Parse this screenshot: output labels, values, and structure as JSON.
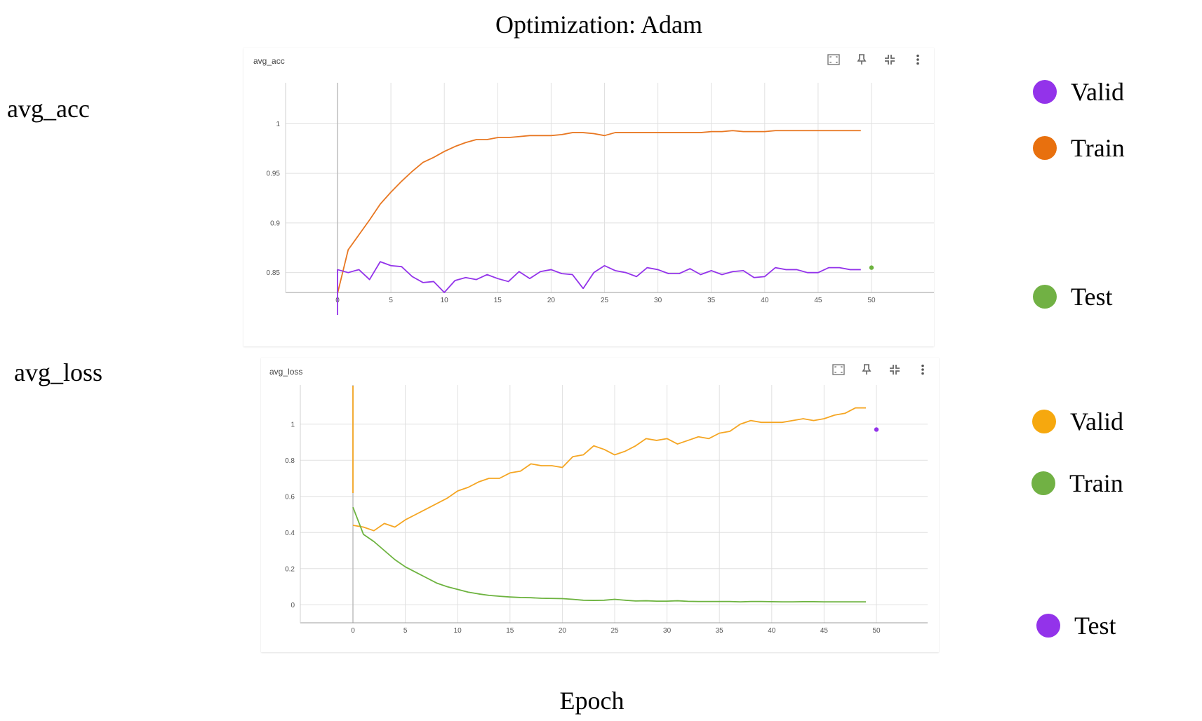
{
  "page": {
    "title": "Optimization: Adam",
    "x_axis_label": "Epoch",
    "row_labels": [
      "avg_acc",
      "avg_loss"
    ]
  },
  "chart_data": [
    {
      "type": "line",
      "card_title": "avg_acc",
      "x_ticks": [
        0,
        5,
        10,
        15,
        20,
        25,
        30,
        35,
        40,
        45,
        50
      ],
      "y_ticks": [
        0.85,
        0.9,
        0.95,
        1
      ],
      "y_tick_labels": [
        "0.85",
        "0.9",
        "0.95",
        "1"
      ],
      "xlim": [
        -5,
        55
      ],
      "ylim": [
        0.83,
        1.02
      ],
      "grid": true,
      "series": [
        {
          "name": "Train",
          "color": "#e87722",
          "x": [
            0,
            1,
            2,
            3,
            4,
            5,
            6,
            7,
            8,
            9,
            10,
            11,
            12,
            13,
            14,
            15,
            16,
            17,
            18,
            19,
            20,
            21,
            22,
            23,
            24,
            25,
            26,
            27,
            28,
            29,
            30,
            31,
            32,
            33,
            34,
            35,
            36,
            37,
            38,
            39,
            40,
            41,
            42,
            43,
            44,
            45,
            46,
            47,
            48,
            49
          ],
          "y": [
            0.829,
            0.873,
            0.888,
            0.903,
            0.919,
            0.931,
            0.942,
            0.952,
            0.961,
            0.966,
            0.972,
            0.977,
            0.981,
            0.984,
            0.984,
            0.986,
            0.986,
            0.987,
            0.988,
            0.988,
            0.988,
            0.989,
            0.991,
            0.991,
            0.99,
            0.988,
            0.991,
            0.991,
            0.991,
            0.991,
            0.991,
            0.991,
            0.991,
            0.991,
            0.991,
            0.992,
            0.992,
            0.993,
            0.992,
            0.992,
            0.992,
            0.993,
            0.993,
            0.993,
            0.993,
            0.993,
            0.993,
            0.993,
            0.993,
            0.993
          ]
        },
        {
          "name": "Valid",
          "color": "#9333ea",
          "x": [
            0,
            1,
            2,
            3,
            4,
            5,
            6,
            7,
            8,
            9,
            10,
            11,
            12,
            13,
            14,
            15,
            16,
            17,
            18,
            19,
            20,
            21,
            22,
            23,
            24,
            25,
            26,
            27,
            28,
            29,
            30,
            31,
            32,
            33,
            34,
            35,
            36,
            37,
            38,
            39,
            40,
            41,
            42,
            43,
            44,
            45,
            46,
            47,
            48,
            49
          ],
          "y": [
            0.853,
            0.85,
            0.853,
            0.843,
            0.861,
            0.857,
            0.856,
            0.846,
            0.84,
            0.841,
            0.83,
            0.842,
            0.845,
            0.843,
            0.848,
            0.844,
            0.841,
            0.851,
            0.844,
            0.851,
            0.853,
            0.849,
            0.848,
            0.834,
            0.85,
            0.857,
            0.852,
            0.85,
            0.846,
            0.855,
            0.853,
            0.849,
            0.849,
            0.854,
            0.848,
            0.852,
            0.848,
            0.851,
            0.852,
            0.845,
            0.846,
            0.855,
            0.853,
            0.853,
            0.85,
            0.85,
            0.855,
            0.855,
            0.853,
            0.853
          ]
        },
        {
          "name": "Test",
          "color": "#6db33f",
          "x": [
            50
          ],
          "y": [
            0.855
          ]
        }
      ],
      "legend": [
        {
          "label": "Valid",
          "color": "#9333ea"
        },
        {
          "label": "Train",
          "color": "#e8700e"
        },
        {
          "label": "Test",
          "color": "#71b144"
        }
      ]
    },
    {
      "type": "line",
      "card_title": "avg_loss",
      "x_ticks": [
        0,
        5,
        10,
        15,
        20,
        25,
        30,
        35,
        40,
        45,
        50
      ],
      "y_ticks": [
        0,
        0.2,
        0.4,
        0.6,
        0.8,
        1
      ],
      "y_tick_labels": [
        "0",
        "0.2",
        "0.4",
        "0.6",
        "0.8",
        "1"
      ],
      "xlim": [
        -5,
        55
      ],
      "ylim": [
        -0.1,
        1.1
      ],
      "grid": true,
      "series": [
        {
          "name": "Valid",
          "color": "#f5a623",
          "x": [
            0,
            1,
            2,
            3,
            4,
            5,
            6,
            7,
            8,
            9,
            10,
            11,
            12,
            13,
            14,
            15,
            16,
            17,
            18,
            19,
            20,
            21,
            22,
            23,
            24,
            25,
            26,
            27,
            28,
            29,
            30,
            31,
            32,
            33,
            34,
            35,
            36,
            37,
            38,
            39,
            40,
            41,
            42,
            43,
            44,
            45,
            46,
            47,
            48,
            49
          ],
          "y": [
            0.44,
            0.43,
            0.41,
            0.45,
            0.43,
            0.47,
            0.5,
            0.53,
            0.56,
            0.59,
            0.63,
            0.65,
            0.68,
            0.7,
            0.7,
            0.73,
            0.74,
            0.78,
            0.77,
            0.77,
            0.76,
            0.82,
            0.83,
            0.88,
            0.86,
            0.83,
            0.85,
            0.88,
            0.92,
            0.91,
            0.92,
            0.89,
            0.91,
            0.93,
            0.92,
            0.95,
            0.96,
            1.0,
            1.02,
            1.01,
            1.01,
            1.01,
            1.02,
            1.03,
            1.02,
            1.03,
            1.05,
            1.06,
            1.09,
            1.09
          ]
        },
        {
          "name": "Train",
          "color": "#6db33f",
          "x": [
            0,
            1,
            2,
            3,
            4,
            5,
            6,
            7,
            8,
            9,
            10,
            11,
            12,
            13,
            14,
            15,
            16,
            17,
            18,
            19,
            20,
            21,
            22,
            23,
            24,
            25,
            26,
            27,
            28,
            29,
            30,
            31,
            32,
            33,
            34,
            35,
            36,
            37,
            38,
            39,
            40,
            41,
            42,
            43,
            44,
            45,
            46,
            47,
            48,
            49
          ],
          "y": [
            0.54,
            0.39,
            0.35,
            0.3,
            0.25,
            0.21,
            0.18,
            0.15,
            0.12,
            0.1,
            0.085,
            0.07,
            0.06,
            0.052,
            0.047,
            0.043,
            0.04,
            0.039,
            0.036,
            0.035,
            0.034,
            0.03,
            0.025,
            0.024,
            0.025,
            0.03,
            0.025,
            0.021,
            0.022,
            0.02,
            0.02,
            0.022,
            0.019,
            0.018,
            0.018,
            0.018,
            0.018,
            0.016,
            0.018,
            0.018,
            0.017,
            0.016,
            0.016,
            0.017,
            0.017,
            0.016,
            0.016,
            0.016,
            0.016,
            0.016
          ]
        },
        {
          "name": "Test",
          "color": "#9333ea",
          "x": [
            50
          ],
          "y": [
            0.97
          ]
        }
      ],
      "legend": [
        {
          "label": "Valid",
          "color": "#f6a80e"
        },
        {
          "label": "Train",
          "color": "#71b144"
        },
        {
          "label": "Test",
          "color": "#9333ea"
        }
      ]
    }
  ],
  "toolbar_icons": [
    "fit-domain-icon",
    "pin-icon",
    "collapse-icon",
    "more-vert-icon"
  ]
}
